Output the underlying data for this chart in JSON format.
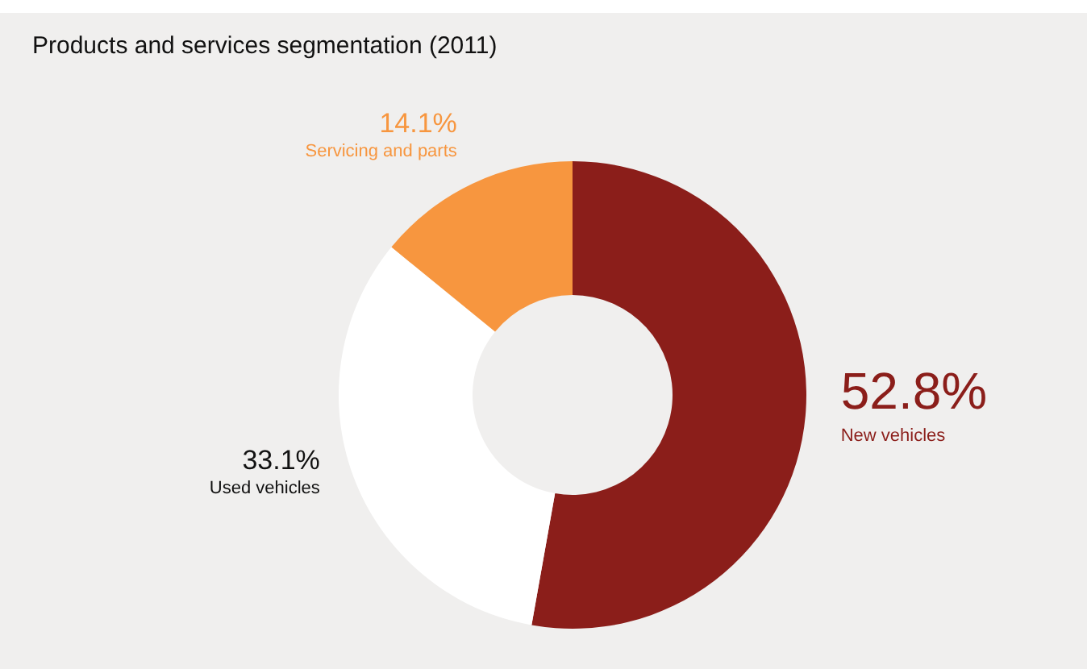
{
  "chart_data": {
    "type": "donut",
    "title": "Products and services segmentation (2011)",
    "categories": [
      "New vehicles",
      "Used vehicles",
      "Servicing and parts"
    ],
    "values": [
      52.8,
      33.1,
      14.1
    ],
    "value_labels": [
      "52.8%",
      "33.1%",
      "14.1%"
    ],
    "colors": [
      "#8b1e1a",
      "#ffffff",
      "#f7963f"
    ],
    "legend": false
  }
}
